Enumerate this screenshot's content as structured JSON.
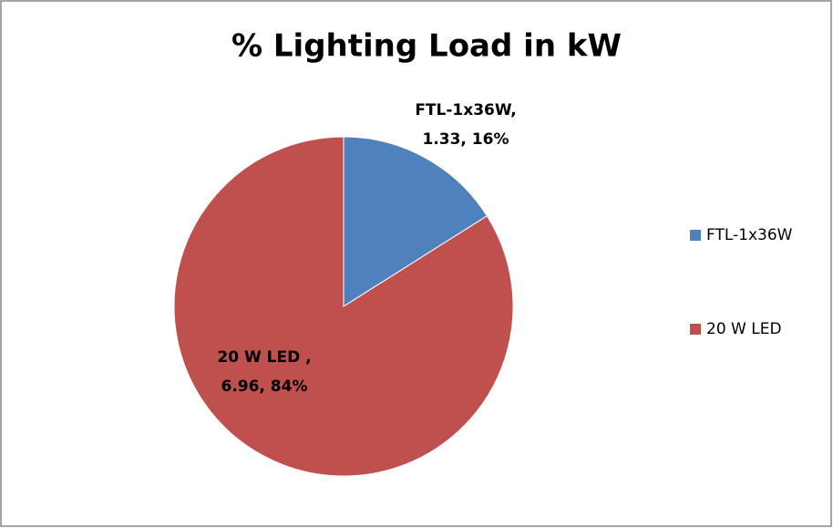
{
  "chart_data": {
    "type": "pie",
    "title": "% Lighting Load in kW",
    "categories": [
      "FTL-1x36W",
      "20 W LED"
    ],
    "values": [
      1.33,
      6.96
    ],
    "value_labels": [
      [
        "FTL-1x36W,",
        "1.33, 16%"
      ],
      [
        "20 W LED ,",
        "6.96, 84%"
      ]
    ],
    "colors": [
      "#4f81bd",
      "#c0504d"
    ],
    "legend": "right"
  }
}
